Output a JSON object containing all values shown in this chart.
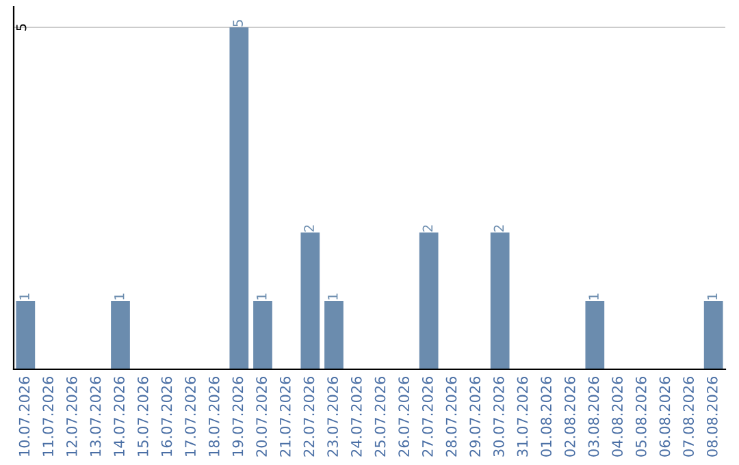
{
  "chart_data": {
    "type": "bar",
    "categories": [
      "10.07.2026",
      "11.07.2026",
      "12.07.2026",
      "13.07.2026",
      "14.07.2026",
      "15.07.2026",
      "16.07.2026",
      "17.07.2026",
      "18.07.2026",
      "19.07.2026",
      "20.07.2026",
      "21.07.2026",
      "22.07.2026",
      "23.07.2026",
      "24.07.2026",
      "25.07.2026",
      "26.07.2026",
      "27.07.2026",
      "28.07.2026",
      "29.07.2026",
      "30.07.2026",
      "31.07.2026",
      "01.08.2026",
      "02.08.2026",
      "03.08.2026",
      "04.08.2026",
      "05.08.2026",
      "06.08.2026",
      "07.08.2026",
      "08.08.2026"
    ],
    "values": [
      1,
      0,
      0,
      0,
      1,
      0,
      0,
      0,
      0,
      5,
      1,
      0,
      2,
      1,
      0,
      0,
      0,
      2,
      0,
      0,
      2,
      0,
      0,
      0,
      1,
      0,
      0,
      0,
      0,
      1
    ],
    "value_labels": [
      "1",
      null,
      null,
      null,
      "1",
      null,
      null,
      null,
      null,
      "5",
      "1",
      null,
      "2",
      "1",
      null,
      null,
      null,
      "2",
      null,
      null,
      "2",
      null,
      null,
      null,
      "1",
      null,
      null,
      null,
      null,
      "1"
    ],
    "color": "#6b8cae",
    "ylim": [
      0,
      5.3
    ],
    "yticks": [
      5
    ],
    "grid": "y"
  }
}
